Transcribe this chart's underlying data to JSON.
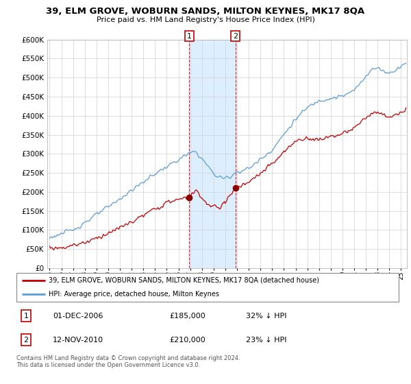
{
  "title": "39, ELM GROVE, WOBURN SANDS, MILTON KEYNES, MK17 8QA",
  "subtitle": "Price paid vs. HM Land Registry's House Price Index (HPI)",
  "legend_line1": "39, ELM GROVE, WOBURN SANDS, MILTON KEYNES, MK17 8QA (detached house)",
  "legend_line2": "HPI: Average price, detached house, Milton Keynes",
  "sale1_label": "1",
  "sale1_date": "01-DEC-2006",
  "sale1_price": "£185,000",
  "sale1_hpi": "32% ↓ HPI",
  "sale2_label": "2",
  "sale2_date": "12-NOV-2010",
  "sale2_price": "£210,000",
  "sale2_hpi": "23% ↓ HPI",
  "copyright": "Contains HM Land Registry data © Crown copyright and database right 2024.\nThis data is licensed under the Open Government Licence v3.0.",
  "hpi_color": "#5b9bd5",
  "hpi_shade_color": "#ddeeff",
  "sale_color": "#c00000",
  "marker_color": "#8b0000",
  "sale1_year": 2006.92,
  "sale2_year": 2010.87,
  "sale1_price_val": 185000,
  "sale2_price_val": 210000,
  "ylim_min": 0,
  "ylim_max": 600000,
  "xlim_min": 1994.8,
  "xlim_max": 2025.5,
  "yticks": [
    0,
    50000,
    100000,
    150000,
    200000,
    250000,
    300000,
    350000,
    400000,
    450000,
    500000,
    550000,
    600000
  ]
}
